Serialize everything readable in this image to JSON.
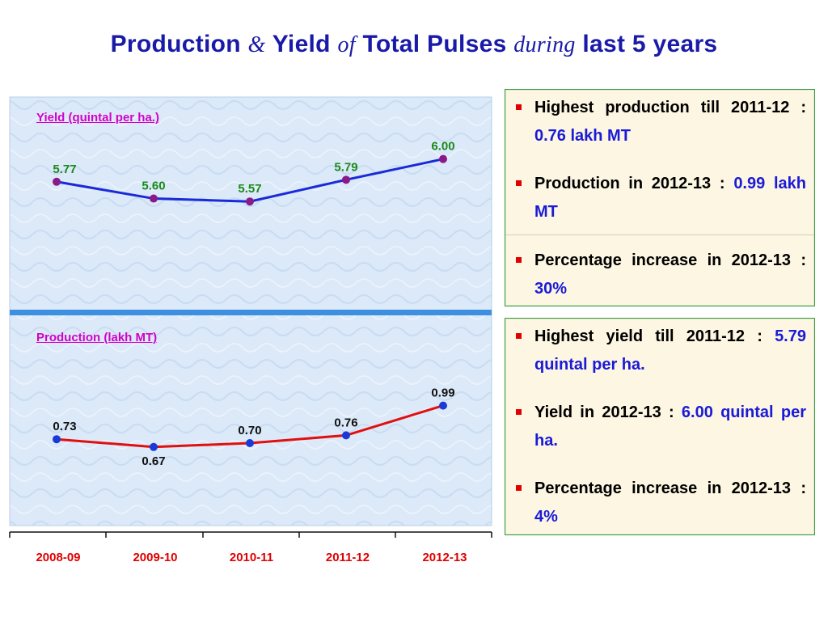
{
  "title": {
    "part1": "Production",
    "amp": "&",
    "part2": "Yield",
    "of": "of",
    "part3": "Total Pulses",
    "during": "during",
    "part4": "last 5 years"
  },
  "chart_data": {
    "type": "line",
    "categories": [
      "2008-09",
      "2009-10",
      "2010-11",
      "2011-12",
      "2012-13"
    ],
    "panels": [
      {
        "label": "Yield (quintal per ha.)",
        "values": [
          5.77,
          5.6,
          5.57,
          5.79,
          6.0
        ],
        "value_labels": [
          "5.77",
          "5.60",
          "5.57",
          "5.79",
          "6.00"
        ],
        "ylim": [
          4.5,
          6.3
        ],
        "line_color": "#1a2ad8",
        "marker_color": "#8a1a8a",
        "label_color": "#1a8a1a"
      },
      {
        "label": "Production (lakh MT)",
        "values": [
          0.73,
          0.67,
          0.7,
          0.76,
          0.99
        ],
        "value_labels": [
          "0.73",
          "0.67",
          "0.70",
          "0.76",
          "0.99"
        ],
        "ylim": [
          0.0,
          1.5
        ],
        "line_color": "#e01010",
        "marker_color": "#1a3ad8",
        "label_color": "#111111"
      }
    ],
    "tick_label_color": "#e00000",
    "grid": false
  },
  "boxes": [
    {
      "items": [
        {
          "text": "Highest production till 2011-12 :",
          "value": "0.76 lakh MT"
        },
        {
          "text": "Production in 2012-13 :",
          "value": "0.99 lakh MT"
        },
        {
          "text": "Percentage increase in 2012-13 :",
          "value": "30%"
        }
      ]
    },
    {
      "items": [
        {
          "text": "Highest yield till 2011-12 :",
          "value": "5.79 quintal per ha."
        },
        {
          "text": "Yield in 2012-13 :",
          "value": "6.00 quintal per ha."
        },
        {
          "text": "Percentage increase in 2012-13 :",
          "value": "4%"
        }
      ]
    }
  ]
}
